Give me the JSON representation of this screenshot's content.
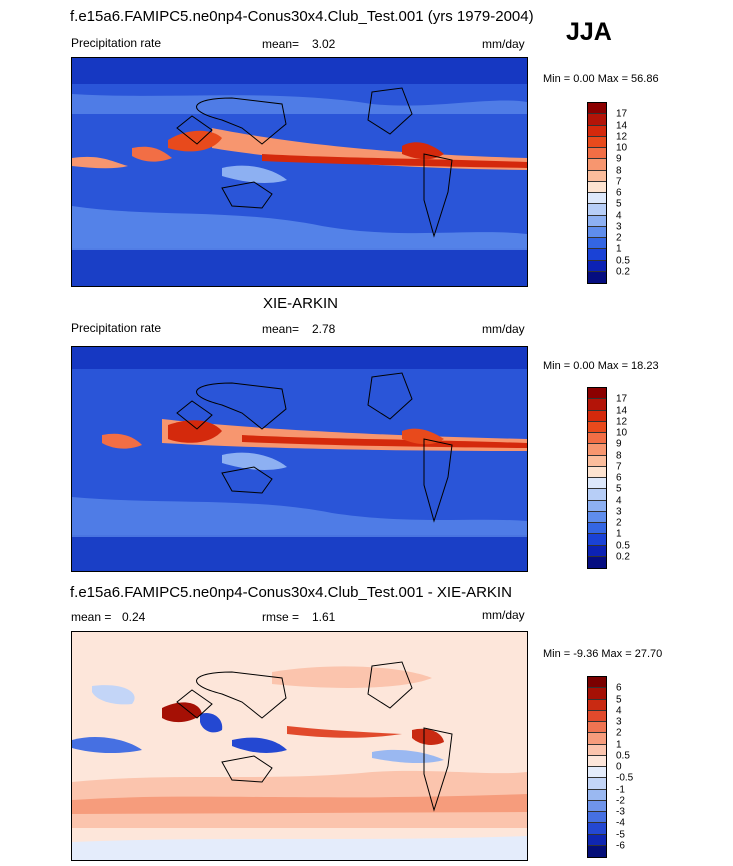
{
  "season": "JJA",
  "panels": [
    {
      "id": "model",
      "title": "f.e15a6.FAMIPC5.ne0np4-Conus30x4.Club_Test.001 (yrs 1979-2004)",
      "left_label": "Precipitation rate",
      "stat1_label": "mean=",
      "stat1_value": "3.02",
      "stat2_label": "",
      "stat2_value": "",
      "units": "mm/day",
      "minmax": "Min =   0.00 Max =  56.86",
      "levels": [
        "17",
        "14",
        "12",
        "10",
        "9",
        "8",
        "7",
        "6",
        "5",
        "4",
        "3",
        "2",
        "1",
        "0.5",
        "0.2"
      ],
      "colors": [
        "#8b0000",
        "#b31408",
        "#d4290c",
        "#e84a1c",
        "#f26e45",
        "#f7966f",
        "#fbbd9c",
        "#fde3d0",
        "#dde8fb",
        "#b7cef7",
        "#8db0f2",
        "#5f8dec",
        "#3466e3",
        "#1a42d6",
        "#0c22b4",
        "#050d80"
      ]
    },
    {
      "id": "obs",
      "title": "XIE-ARKIN",
      "left_label": "Precipitation rate",
      "stat1_label": "mean=",
      "stat1_value": "2.78",
      "stat2_label": "",
      "stat2_value": "",
      "units": "mm/day",
      "minmax": "Min =   0.00 Max =  18.23",
      "levels": [
        "17",
        "14",
        "12",
        "10",
        "9",
        "8",
        "7",
        "6",
        "5",
        "4",
        "3",
        "2",
        "1",
        "0.5",
        "0.2"
      ],
      "colors": [
        "#8b0000",
        "#b31408",
        "#d4290c",
        "#e84a1c",
        "#f26e45",
        "#f7966f",
        "#fbbd9c",
        "#fde3d0",
        "#dde8fb",
        "#b7cef7",
        "#8db0f2",
        "#5f8dec",
        "#3466e3",
        "#1a42d6",
        "#0c22b4",
        "#050d80"
      ]
    },
    {
      "id": "diff",
      "title": "f.e15a6.FAMIPC5.ne0np4-Conus30x4.Club_Test.001 - XIE-ARKIN",
      "left_label": "",
      "stat1_label": "mean =",
      "stat1_value": "0.24",
      "stat2_label": "rmse =",
      "stat2_value": "1.61",
      "units": "mm/day",
      "minmax": "Min =  -9.36 Max =  27.70",
      "levels": [
        "6",
        "5",
        "4",
        "3",
        "2",
        "1",
        "0.5",
        "0",
        "-0.5",
        "-1",
        "-2",
        "-3",
        "-4",
        "-5",
        "-6"
      ],
      "colors": [
        "#7a0000",
        "#a51005",
        "#c92a12",
        "#e14a2c",
        "#ef7452",
        "#f69c7c",
        "#fbc4ad",
        "#fde6da",
        "#e4ecfb",
        "#c3d5f7",
        "#9ab8f1",
        "#6f94ea",
        "#4670e2",
        "#2448d2",
        "#0f26b2",
        "#040e78"
      ]
    }
  ]
}
